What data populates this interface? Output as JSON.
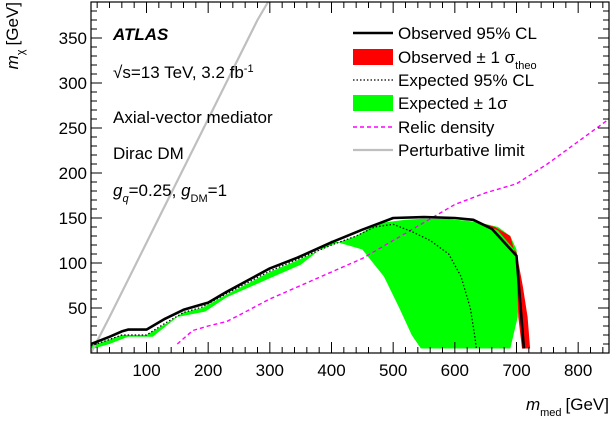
{
  "chart_data": {
    "type": "line",
    "xlabel_var": "m",
    "xlabel_sub": "med",
    "xlabel_unit": "[GeV]",
    "ylabel_var": "m",
    "ylabel_sub": "χ",
    "ylabel_unit": "[GeV]",
    "xlim": [
      10,
      850
    ],
    "ylim": [
      0,
      390
    ],
    "xticks": [
      100,
      200,
      300,
      400,
      500,
      600,
      700,
      800
    ],
    "yticks": [
      50,
      100,
      150,
      200,
      250,
      300,
      350
    ],
    "grid": false,
    "legend_position": "top-right",
    "annotations": {
      "experiment": "ATLAS",
      "energy_prefix": "√s=13 TeV, 3.2 fb",
      "energy_sup": "-1",
      "model": "Axial-vector mediator",
      "dm": "Dirac DM",
      "coupling_g1": "g",
      "coupling_sub1": "q",
      "coupling_mid": "=0.25, ",
      "coupling_g2": "g",
      "coupling_sub2": "DM",
      "coupling_end": "=1"
    },
    "legend": [
      {
        "key": "observed",
        "label": "Observed 95% CL",
        "sub": ""
      },
      {
        "key": "obs_band",
        "label": "Observed ± 1 σ",
        "sub": "theo"
      },
      {
        "key": "expected",
        "label": "Expected 95% CL",
        "sub": ""
      },
      {
        "key": "exp_band",
        "label": "Expected ± 1σ",
        "sub": ""
      },
      {
        "key": "relic",
        "label": "Relic density",
        "sub": ""
      },
      {
        "key": "perturbative",
        "label": "Perturbative limit",
        "sub": ""
      }
    ],
    "colors": {
      "observed": "#000000",
      "obs_band": "#ff0000",
      "expected": "#000000",
      "exp_band": "#00ff00",
      "relic": "#ff00ff",
      "perturbative": "#bfbfbf"
    },
    "series": [
      {
        "key": "exp_band",
        "x": [
          10,
          40,
          60,
          100,
          130,
          160,
          190,
          230,
          300,
          345,
          400,
          440,
          460,
          485,
          520,
          545,
          570,
          585,
          590,
          600,
          620,
          640,
          670,
          690,
          700,
          705,
          702,
          690,
          665,
          640,
          620,
          600,
          582,
          565,
          545,
          530,
          510,
          485,
          450,
          400,
          350,
          300,
          230,
          195,
          150,
          110,
          70,
          40,
          15,
          10
        ],
        "y": [
          8,
          15,
          20,
          20,
          32,
          45,
          50,
          65,
          90,
          103,
          120,
          130,
          138,
          145,
          148,
          149,
          149,
          149,
          149,
          148,
          147,
          145,
          140,
          130,
          115,
          80,
          40,
          5,
          5,
          5,
          5,
          5,
          5,
          5,
          5,
          20,
          50,
          85,
          115,
          125,
          98,
          83,
          62,
          46,
          40,
          18,
          18,
          10,
          5,
          5
        ]
      },
      {
        "key": "obs_band",
        "x": [
          612,
          640,
          670,
          700,
          710,
          718,
          722,
          709,
          703,
          700,
          690,
          665,
          640,
          612
        ],
        "y": [
          149,
          146,
          136,
          112,
          75,
          40,
          5,
          5,
          40,
          105,
          130,
          140,
          145,
          149
        ]
      },
      {
        "key": "perturbative",
        "x": [
          10,
          40,
          80,
          120,
          160,
          200,
          240,
          280,
          297
        ],
        "y": [
          0,
          40,
          95,
          150,
          205,
          260,
          315,
          370,
          390
        ]
      },
      {
        "key": "relic",
        "x": [
          150,
          175,
          200,
          230,
          250,
          300,
          350,
          400,
          450,
          500,
          550,
          600,
          650,
          700,
          750,
          800,
          850
        ],
        "y": [
          10,
          25,
          30,
          35,
          42,
          60,
          75,
          90,
          105,
          125,
          145,
          165,
          178,
          188,
          210,
          235,
          260
        ]
      },
      {
        "key": "expected",
        "x": [
          10,
          40,
          60,
          100,
          130,
          160,
          190,
          230,
          300,
          345,
          400,
          440,
          470,
          500,
          530,
          560,
          590,
          610,
          625,
          632,
          635
        ],
        "y": [
          8,
          15,
          20,
          20,
          33,
          45,
          51,
          66,
          91,
          104,
          120,
          130,
          140,
          143,
          135,
          125,
          110,
          85,
          50,
          20,
          5
        ]
      },
      {
        "key": "observed",
        "x": [
          10,
          40,
          60,
          70,
          100,
          130,
          160,
          190,
          200,
          230,
          300,
          345,
          400,
          450,
          500,
          550,
          600,
          630,
          660,
          700,
          712
        ],
        "y": [
          10,
          18,
          24,
          26,
          26,
          38,
          48,
          54,
          56,
          68,
          94,
          106,
          123,
          137,
          150,
          151,
          150,
          148,
          138,
          108,
          5
        ]
      }
    ]
  }
}
